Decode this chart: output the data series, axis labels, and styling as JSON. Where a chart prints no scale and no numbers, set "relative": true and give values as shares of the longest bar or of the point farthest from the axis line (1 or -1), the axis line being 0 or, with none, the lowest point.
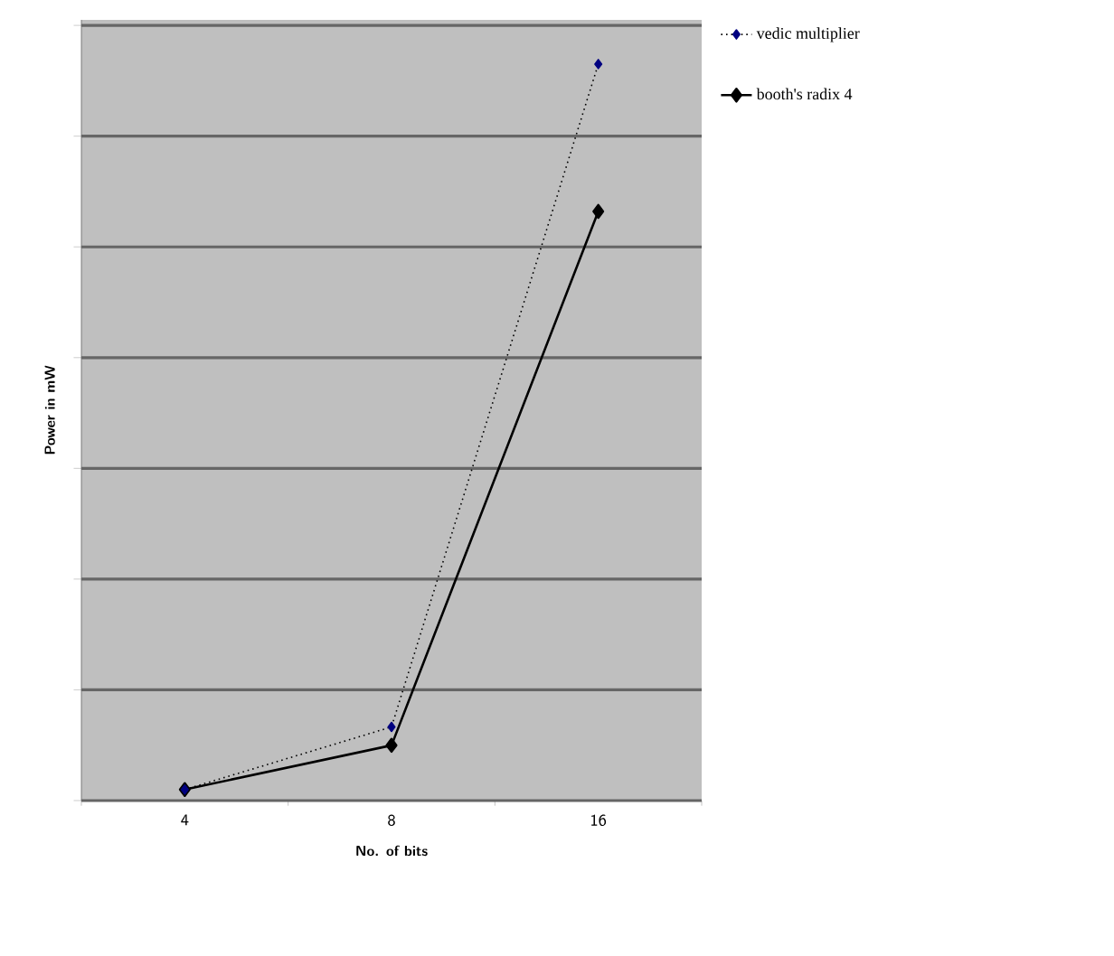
{
  "chart_data": {
    "type": "line",
    "relative": true,
    "xlabel": "No. of bits",
    "ylabel": "Power in mW",
    "categories": [
      "4",
      "8",
      "16"
    ],
    "series": [
      {
        "name": "vedic multiplier",
        "color": "#000080",
        "line_style": "dotted",
        "values": [
          0.015,
          0.1,
          1
        ]
      },
      {
        "name": "booth's radix 4",
        "color": "#000000",
        "line_style": "solid",
        "values": [
          0.015,
          0.075,
          0.8
        ]
      }
    ],
    "marker": "diamond",
    "grid": "y",
    "legend": "top right",
    "tick_labels": "x"
  }
}
